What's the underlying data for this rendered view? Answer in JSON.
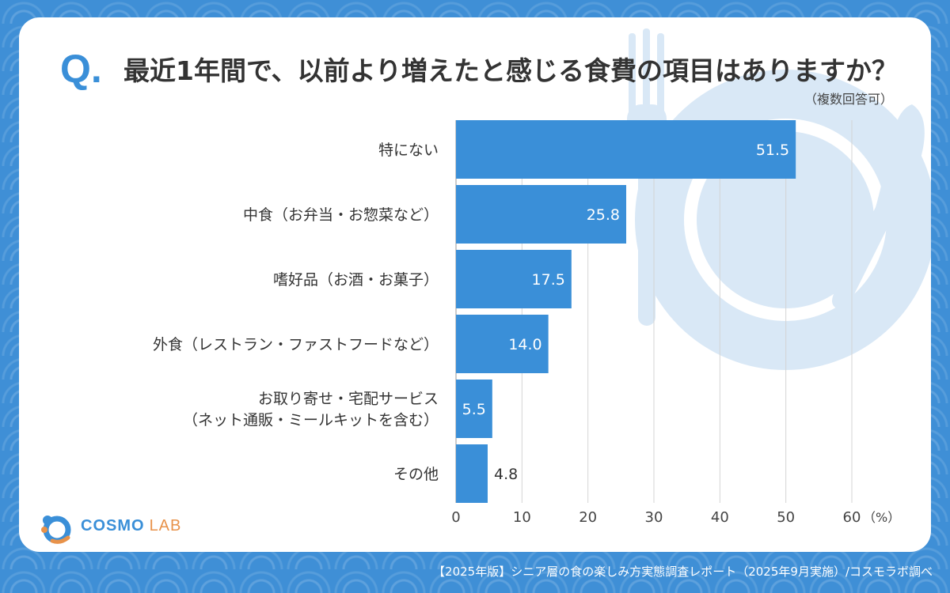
{
  "question": {
    "mark": "Q.",
    "text": "最近1年間で、以前より増えたと感じる食費の項目はありますか？",
    "note": "（複数回答可）"
  },
  "chart_data": {
    "type": "bar",
    "orientation": "horizontal",
    "categories": [
      [
        "特にない"
      ],
      [
        "中食（お弁当・お惣菜など）"
      ],
      [
        "嗜好品（お酒・お菓子）"
      ],
      [
        "外食（レストラン・ファストフードなど）"
      ],
      [
        "お取り寄せ・宅配サービス",
        "（ネット通販・ミールキットを含む）"
      ],
      [
        "その他"
      ]
    ],
    "values": [
      51.5,
      25.8,
      17.5,
      14.0,
      5.5,
      4.8
    ],
    "value_labels": [
      "51.5",
      "25.8",
      "17.5",
      "14.0",
      "5.5",
      "4.8"
    ],
    "x_ticks": [
      0,
      10,
      20,
      30,
      40,
      50,
      60
    ],
    "x_unit": "（%）",
    "xlim": [
      0,
      60
    ],
    "grid": true,
    "bar_color": "#3a8fd8"
  },
  "logo": {
    "name": "COSMO",
    "sub": "LAB"
  },
  "footer": "【2025年版】シニア層の食の楽しみ方実態調査レポート（2025年9月実施）/コスモラボ調べ",
  "colors": {
    "background": "#3f8fd6",
    "accent": "#3a8fd8",
    "decoration": "#d6e7f7"
  }
}
